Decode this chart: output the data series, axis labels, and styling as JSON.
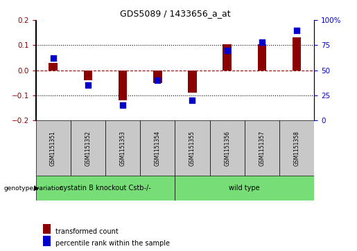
{
  "title": "GDS5089 / 1433656_a_at",
  "samples": [
    "GSM1151351",
    "GSM1151352",
    "GSM1151353",
    "GSM1151354",
    "GSM1151355",
    "GSM1151356",
    "GSM1151357",
    "GSM1151358"
  ],
  "red_bars": [
    0.03,
    -0.04,
    -0.12,
    -0.05,
    -0.09,
    0.105,
    0.105,
    0.13
  ],
  "blue_dots_pct": [
    62,
    35,
    15,
    40,
    20,
    70,
    78,
    90
  ],
  "ylim": [
    -0.2,
    0.2
  ],
  "y2lim": [
    0,
    100
  ],
  "yticks": [
    -0.2,
    -0.1,
    0.0,
    0.1,
    0.2
  ],
  "y2ticks": [
    0,
    25,
    50,
    75,
    100
  ],
  "group1_label": "cystatin B knockout Cstb-/-",
  "group2_label": "wild type",
  "group1_count": 4,
  "group2_count": 4,
  "genotype_label": "genotype/variation",
  "legend1": "transformed count",
  "legend2": "percentile rank within the sample",
  "red_color": "#8B0000",
  "blue_color": "#0000CD",
  "green_color": "#77DD77",
  "gray_color": "#C8C8C8",
  "bar_width": 0.25,
  "dot_size": 28
}
